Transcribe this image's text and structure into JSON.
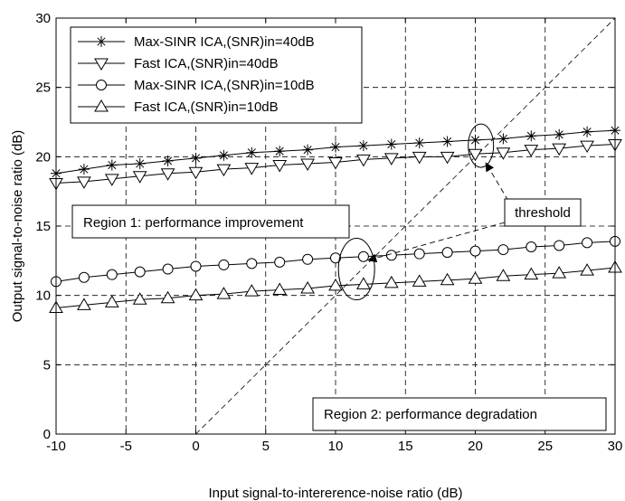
{
  "chart_data": {
    "type": "line",
    "title": "",
    "xlabel": "Input signal-to-intererence-noise ratio (dB)",
    "ylabel": "Output signal-to-noise ratio (dB)",
    "xlim": [
      -10,
      30
    ],
    "ylim": [
      0,
      30
    ],
    "xticks": [
      -10,
      -5,
      0,
      5,
      10,
      15,
      20,
      25,
      30
    ],
    "yticks": [
      0,
      5,
      10,
      15,
      20,
      25,
      30
    ],
    "grid": "dashed",
    "legend_position": "top-left",
    "x": [
      -10,
      -8,
      -6,
      -4,
      -2,
      0,
      2,
      4,
      6,
      8,
      10,
      12,
      14,
      16,
      18,
      20,
      22,
      24,
      26,
      28,
      30
    ],
    "series": [
      {
        "name": "Max-SINR ICA,(SNR)in=40dB",
        "marker": "star",
        "values": [
          18.8,
          19.1,
          19.4,
          19.5,
          19.7,
          19.9,
          20.1,
          20.3,
          20.4,
          20.5,
          20.7,
          20.8,
          20.9,
          21.0,
          21.1,
          21.2,
          21.3,
          21.5,
          21.6,
          21.8,
          21.9
        ]
      },
      {
        "name": "Fast ICA,(SNR)in=40dB",
        "marker": "triangle-down",
        "values": [
          18.1,
          18.2,
          18.4,
          18.6,
          18.8,
          18.9,
          19.1,
          19.2,
          19.4,
          19.5,
          19.6,
          19.8,
          19.9,
          20.0,
          20.0,
          20.2,
          20.3,
          20.5,
          20.6,
          20.8,
          20.9
        ]
      },
      {
        "name": "Max-SINR ICA,(SNR)in=10dB",
        "marker": "circle",
        "values": [
          11.0,
          11.3,
          11.5,
          11.7,
          11.9,
          12.1,
          12.2,
          12.3,
          12.4,
          12.6,
          12.7,
          12.8,
          12.9,
          13.0,
          13.1,
          13.2,
          13.3,
          13.5,
          13.6,
          13.8,
          13.9
        ]
      },
      {
        "name": "Fast ICA,(SNR)in=10dB",
        "marker": "triangle-up",
        "values": [
          9.1,
          9.3,
          9.5,
          9.7,
          9.8,
          10.0,
          10.1,
          10.3,
          10.4,
          10.5,
          10.7,
          10.8,
          10.9,
          11.0,
          11.1,
          11.2,
          11.4,
          11.5,
          11.6,
          11.8,
          12.0
        ]
      }
    ],
    "reference_line": {
      "style": "dashed",
      "x": [
        0,
        30
      ],
      "y": [
        0,
        30
      ]
    },
    "annotations": {
      "threshold": "threshold",
      "region1": "Region 1: performance improvement",
      "region2": "Region 2: performance degradation"
    },
    "threshold_ellipses": [
      {
        "x": 20.4,
        "y": 20.8
      },
      {
        "x": 11.5,
        "y": 11.9
      }
    ]
  }
}
